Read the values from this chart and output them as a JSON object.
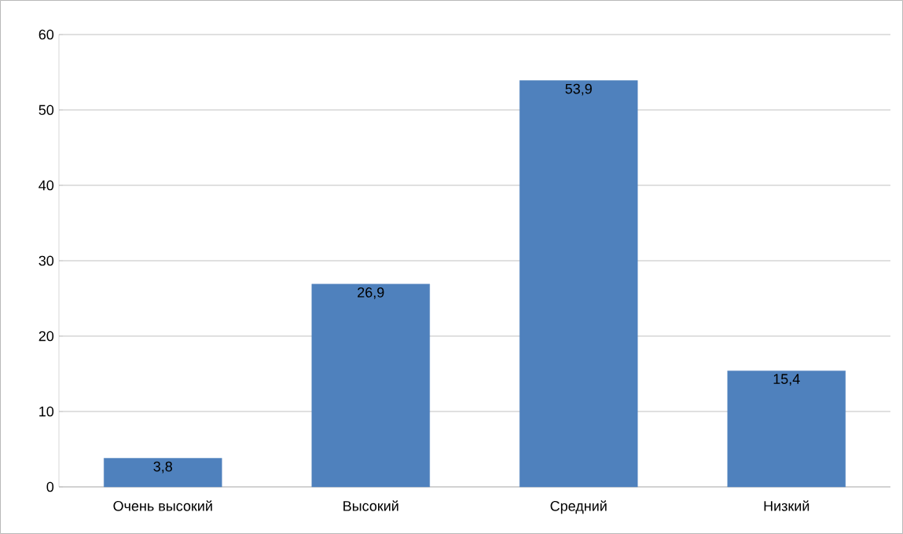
{
  "chart_data": {
    "type": "bar",
    "categories": [
      "Очень высокий",
      "Высокий",
      "Средний",
      "Низкий"
    ],
    "values": [
      3.8,
      26.9,
      53.9,
      15.4
    ],
    "value_labels": [
      "3,8",
      "26,9",
      "53,9",
      "15,4"
    ],
    "color": "#4f81bd",
    "ylim": [
      0,
      60
    ],
    "yticks": [
      0,
      10,
      20,
      30,
      40,
      50,
      60
    ],
    "grid": "y"
  }
}
